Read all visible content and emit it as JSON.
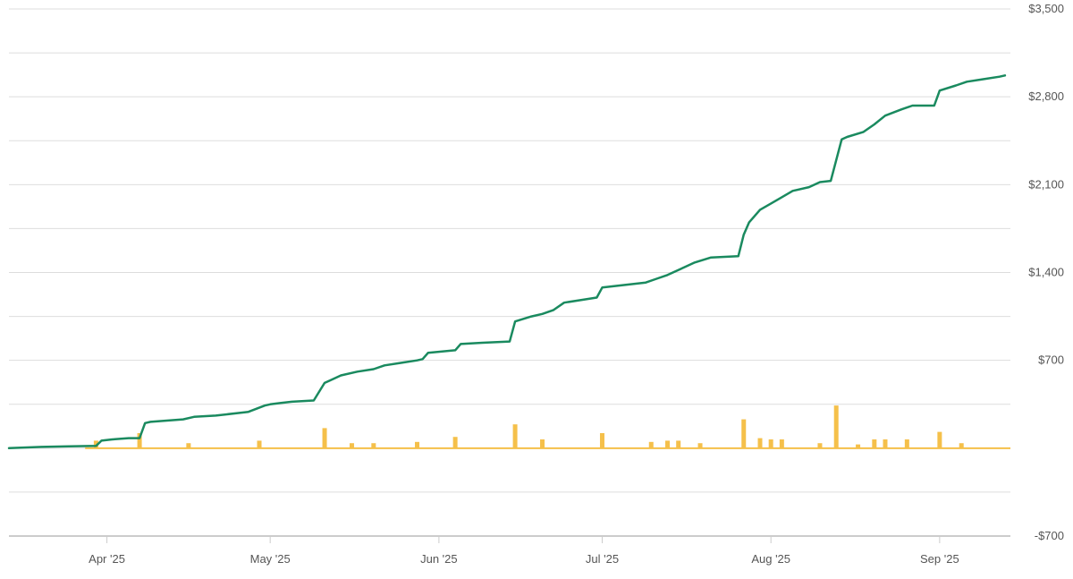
{
  "chart_data": {
    "type": "line",
    "title": "",
    "xlabel": "",
    "ylabel": "",
    "x_range": [
      "2025-03-14",
      "2025-09-14"
    ],
    "ylim": [
      -700,
      3500
    ],
    "y_ticks": [
      3500,
      2800,
      2100,
      1400,
      700,
      -700
    ],
    "y_tick_labels": [
      "$3,500",
      "$2,800",
      "$2,100",
      "$1,400",
      "$700",
      "-$700"
    ],
    "x_ticks": [
      "2025-04-01",
      "2025-05-01",
      "2025-06-01",
      "2025-07-01",
      "2025-08-01",
      "2025-09-01"
    ],
    "x_tick_labels": [
      "Apr '25",
      "May '25",
      "Jun '25",
      "Jul '25",
      "Aug '25",
      "Sep '25"
    ],
    "grid": true,
    "legend": "none",
    "colors": {
      "line": "#1a8a5f",
      "bars": "#f5c04a",
      "grid": "#dddddd",
      "axis": "#cccccc"
    },
    "series": [
      {
        "type": "line",
        "x": [
          "2025-03-14",
          "2025-03-20",
          "2025-03-25",
          "2025-03-30",
          "2025-03-31",
          "2025-04-02",
          "2025-04-05",
          "2025-04-07",
          "2025-04-08",
          "2025-04-09",
          "2025-04-12",
          "2025-04-15",
          "2025-04-17",
          "2025-04-21",
          "2025-04-25",
          "2025-04-27",
          "2025-04-30",
          "2025-05-01",
          "2025-05-03",
          "2025-05-05",
          "2025-05-09",
          "2025-05-11",
          "2025-05-12",
          "2025-05-14",
          "2025-05-17",
          "2025-05-20",
          "2025-05-22",
          "2025-05-25",
          "2025-05-28",
          "2025-05-29",
          "2025-05-30",
          "2025-06-04",
          "2025-06-05",
          "2025-06-09",
          "2025-06-14",
          "2025-06-15",
          "2025-06-18",
          "2025-06-20",
          "2025-06-22",
          "2025-06-24",
          "2025-06-27",
          "2025-06-30",
          "2025-07-01",
          "2025-07-05",
          "2025-07-09",
          "2025-07-11",
          "2025-07-13",
          "2025-07-16",
          "2025-07-18",
          "2025-07-21",
          "2025-07-26",
          "2025-07-27",
          "2025-07-28",
          "2025-07-30",
          "2025-08-01",
          "2025-08-03",
          "2025-08-05",
          "2025-08-08",
          "2025-08-10",
          "2025-08-12",
          "2025-08-14",
          "2025-08-15",
          "2025-08-18",
          "2025-08-20",
          "2025-08-22",
          "2025-08-25",
          "2025-08-27",
          "2025-08-31",
          "2025-09-01",
          "2025-09-04",
          "2025-09-06",
          "2025-09-09",
          "2025-09-12",
          "2025-09-13"
        ],
        "values": [
          0,
          10,
          15,
          18,
          60,
          70,
          80,
          80,
          200,
          210,
          220,
          230,
          250,
          260,
          280,
          290,
          340,
          350,
          360,
          370,
          380,
          520,
          540,
          580,
          610,
          630,
          660,
          680,
          700,
          710,
          760,
          780,
          830,
          840,
          850,
          1010,
          1050,
          1070,
          1100,
          1160,
          1180,
          1200,
          1280,
          1300,
          1320,
          1350,
          1380,
          1440,
          1480,
          1520,
          1530,
          1700,
          1800,
          1900,
          1950,
          2000,
          2050,
          2080,
          2120,
          2130,
          2460,
          2480,
          2520,
          2580,
          2650,
          2700,
          2730,
          2730,
          2850,
          2890,
          2920,
          2940,
          2960,
          2970
        ]
      },
      {
        "type": "bar",
        "x": [
          "2025-03-30",
          "2025-04-07",
          "2025-04-16",
          "2025-04-29",
          "2025-05-11",
          "2025-05-16",
          "2025-05-20",
          "2025-05-28",
          "2025-06-04",
          "2025-06-15",
          "2025-06-20",
          "2025-07-01",
          "2025-07-10",
          "2025-07-13",
          "2025-07-15",
          "2025-07-19",
          "2025-07-27",
          "2025-07-30",
          "2025-08-01",
          "2025-08-03",
          "2025-08-10",
          "2025-08-13",
          "2025-08-17",
          "2025-08-20",
          "2025-08-22",
          "2025-08-26",
          "2025-09-01",
          "2025-09-05"
        ],
        "values": [
          60,
          120,
          40,
          60,
          160,
          40,
          40,
          50,
          90,
          190,
          70,
          120,
          50,
          60,
          60,
          40,
          230,
          80,
          70,
          70,
          40,
          340,
          30,
          70,
          70,
          70,
          130,
          40
        ]
      }
    ]
  }
}
